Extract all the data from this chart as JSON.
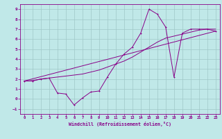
{
  "xlabel": "Windchill (Refroidissement éolien,°C)",
  "bg_color": "#c0e8e8",
  "grid_color": "#a0c8c8",
  "line_color": "#880088",
  "xlim": [
    -0.5,
    23.5
  ],
  "ylim": [
    -1.5,
    9.5
  ],
  "xticks": [
    0,
    1,
    2,
    3,
    4,
    5,
    6,
    7,
    8,
    9,
    10,
    11,
    12,
    13,
    14,
    15,
    16,
    17,
    18,
    19,
    20,
    21,
    22,
    23
  ],
  "yticks": [
    -1,
    0,
    1,
    2,
    3,
    4,
    5,
    6,
    7,
    8,
    9
  ],
  "line1_x": [
    0,
    1,
    2,
    3,
    4,
    5,
    6,
    7,
    8,
    9,
    10,
    11,
    12,
    13,
    14,
    15,
    16,
    17,
    18,
    19,
    20,
    21,
    22,
    23
  ],
  "line1_y": [
    1.8,
    1.8,
    2.0,
    2.1,
    0.6,
    0.5,
    -0.6,
    0.1,
    0.7,
    0.8,
    2.2,
    3.5,
    4.5,
    5.2,
    6.6,
    9.0,
    8.5,
    7.2,
    2.2,
    6.6,
    7.0,
    7.0,
    7.0,
    6.8
  ],
  "line2_x": [
    0,
    1,
    2,
    3,
    4,
    5,
    6,
    7,
    8,
    9,
    10,
    11,
    12,
    13,
    14,
    15,
    16,
    17,
    18,
    19,
    20,
    21,
    22,
    23
  ],
  "line2_y": [
    1.8,
    1.85,
    2.0,
    2.1,
    2.2,
    2.3,
    2.4,
    2.5,
    2.7,
    2.9,
    3.2,
    3.5,
    3.8,
    4.2,
    4.7,
    5.2,
    5.7,
    6.1,
    6.3,
    6.5,
    6.7,
    6.9,
    7.0,
    7.0
  ],
  "line3_x": [
    0,
    23
  ],
  "line3_y": [
    1.8,
    6.8
  ]
}
